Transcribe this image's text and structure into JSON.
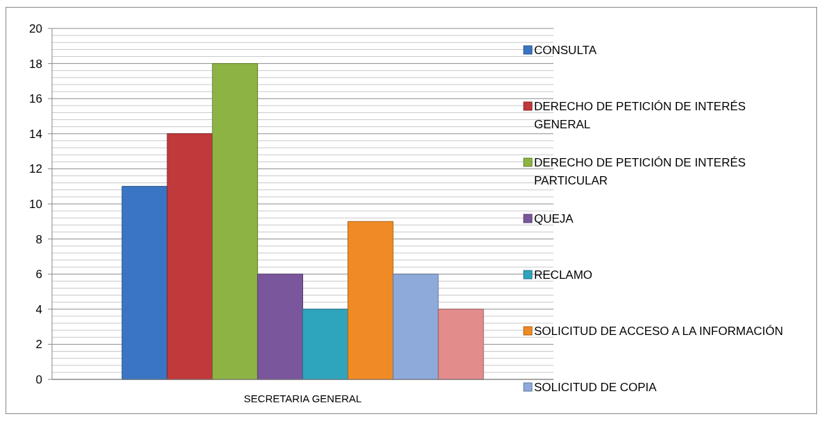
{
  "chart_data": {
    "type": "bar",
    "categories": [
      "SECRETARIA GENERAL"
    ],
    "series": [
      {
        "name": "CONSULTA",
        "color": "#3a75c4",
        "values": [
          11
        ]
      },
      {
        "name": "DERECHO DE PETICIÓN DE INTERÉS GENERAL",
        "color": "#c0393b",
        "values": [
          14
        ]
      },
      {
        "name": "DERECHO DE PETICIÓN DE INTERÉS PARTICULAR",
        "color": "#8db443",
        "values": [
          18
        ]
      },
      {
        "name": "QUEJA",
        "color": "#7a569c",
        "values": [
          6
        ]
      },
      {
        "name": "RECLAMO",
        "color": "#2fa5bd",
        "values": [
          4
        ]
      },
      {
        "name": "SOLICITUD DE ACCESO A LA INFORMACIÓN",
        "color": "#f08a24",
        "values": [
          9
        ]
      },
      {
        "name": "SOLICITUD DE COPIA",
        "color": "#8eaadb",
        "values": [
          6
        ]
      },
      {
        "color": "#e28c8c",
        "values": [
          4
        ]
      }
    ],
    "ylim": [
      0,
      20
    ],
    "yticks": [
      0,
      {
        "value": 0.4,
        "label": null
      },
      {
        "value": 0.8,
        "label": null
      },
      {
        "value": 1.2,
        "label": null
      },
      {
        "value": 1.6,
        "label": null
      },
      2,
      {
        "value": 2.4,
        "label": null
      },
      {
        "value": 2.8,
        "label": null
      },
      {
        "value": 3.2,
        "label": null
      },
      {
        "value": 3.6,
        "label": null
      },
      4,
      {
        "value": 4.4,
        "label": null
      },
      {
        "value": 4.8,
        "label": null
      },
      {
        "value": 5.2,
        "label": null
      },
      {
        "value": 5.6,
        "label": null
      },
      6,
      {
        "value": 6.4,
        "label": null
      },
      {
        "value": 6.8,
        "label": null
      },
      {
        "value": 7.2,
        "label": null
      },
      {
        "value": 7.6,
        "label": null
      },
      8,
      {
        "value": 8.4,
        "label": null
      },
      {
        "value": 8.8,
        "label": null
      },
      {
        "value": 9.2,
        "label": null
      },
      {
        "value": 9.6,
        "label": null
      },
      10,
      {
        "value": 10.4,
        "label": null
      },
      {
        "value": 10.8,
        "label": null
      },
      {
        "value": 11.2,
        "label": null
      },
      {
        "value": 11.6,
        "label": null
      },
      12,
      {
        "value": 12.4,
        "label": null
      },
      {
        "value": 12.8,
        "label": null
      },
      {
        "value": 13.2,
        "label": null
      },
      {
        "value": 13.6,
        "label": null
      },
      14,
      {
        "value": 14.4,
        "label": null
      },
      {
        "value": 14.8,
        "label": null
      },
      {
        "value": 15.2,
        "label": null
      },
      {
        "value": 15.6,
        "label": null
      },
      16,
      {
        "value": 16.4,
        "label": null
      },
      {
        "value": 16.8,
        "label": null
      },
      {
        "value": 17.2,
        "label": null
      },
      {
        "value": 17.6,
        "label": null
      },
      18,
      {
        "value": 18.4,
        "label": null
      },
      {
        "value": 18.8,
        "label": null
      },
      {
        "value": 19.2,
        "label": null
      },
      {
        "value": 19.6,
        "label": null
      },
      20
    ],
    "grid": "y",
    "legend": "right"
  }
}
